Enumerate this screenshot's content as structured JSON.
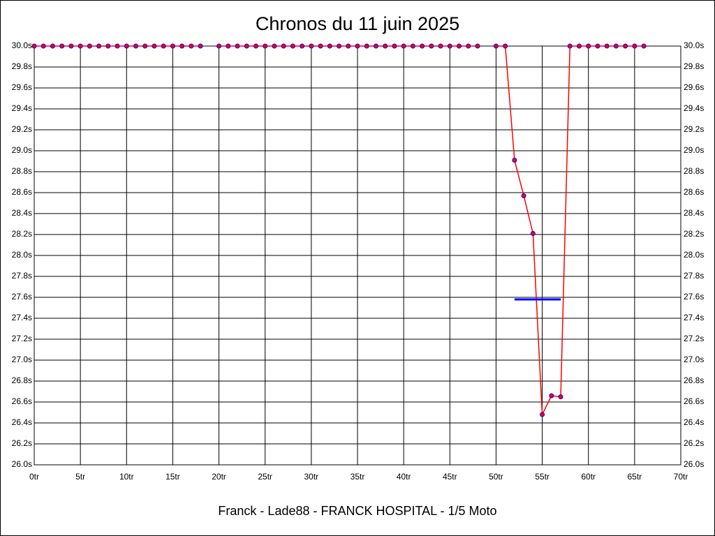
{
  "chart_data": {
    "type": "line",
    "title": "Chronos du 11 juin 2025",
    "subtitle": "Franck - Lade88 - FRANCK HOSPITAL - 1/5 Moto",
    "x": [
      0,
      1,
      2,
      3,
      4,
      5,
      6,
      7,
      8,
      9,
      10,
      11,
      12,
      13,
      14,
      15,
      16,
      17,
      18,
      19,
      20,
      21,
      22,
      23,
      24,
      25,
      26,
      27,
      28,
      29,
      30,
      31,
      32,
      33,
      34,
      35,
      36,
      37,
      38,
      39,
      40,
      41,
      42,
      43,
      44,
      45,
      46,
      47,
      48,
      49,
      50,
      51,
      52,
      53,
      54,
      55,
      56,
      57,
      58,
      59,
      60,
      61,
      62,
      63,
      64,
      65,
      66
    ],
    "series": [
      {
        "color": "#ff0000",
        "marker_edge": "#0000ff",
        "values": [
          30,
          30,
          30,
          30,
          30,
          30,
          30,
          30,
          30,
          30,
          30,
          30,
          30,
          30,
          30,
          30,
          30,
          30,
          30,
          null,
          30,
          30,
          30,
          30,
          30,
          30,
          30,
          30,
          30,
          30,
          30,
          30,
          30,
          30,
          30,
          30,
          30,
          30,
          30,
          30,
          30,
          30,
          30,
          30,
          30,
          30,
          30,
          30,
          30,
          null,
          30,
          30,
          28.91,
          28.57,
          28.21,
          26.48,
          26.66,
          26.65,
          30,
          30,
          30,
          30,
          30,
          30,
          30,
          30,
          30
        ]
      }
    ],
    "average": {
      "value": 27.58,
      "x": [
        52,
        57
      ],
      "color": "#0000ff"
    },
    "xlim": [
      0,
      70
    ],
    "xticks": [
      {
        "value": 0,
        "label": "0tr"
      },
      {
        "value": 5,
        "label": "5tr"
      },
      {
        "value": 10,
        "label": "10tr"
      },
      {
        "value": 15,
        "label": "15tr"
      },
      {
        "value": 20,
        "label": "20tr"
      },
      {
        "value": 25,
        "label": "25tr"
      },
      {
        "value": 30,
        "label": "30tr"
      },
      {
        "value": 35,
        "label": "35tr"
      },
      {
        "value": 40,
        "label": "40tr"
      },
      {
        "value": 45,
        "label": "45tr"
      },
      {
        "value": 50,
        "label": "50tr"
      },
      {
        "value": 55,
        "label": "55tr"
      },
      {
        "value": 60,
        "label": "60tr"
      },
      {
        "value": 65,
        "label": "65tr"
      },
      {
        "value": 70,
        "label": "70tr"
      }
    ],
    "ylim": [
      26,
      30
    ],
    "yticks": [
      {
        "value": 26,
        "label": "26.0s"
      },
      {
        "value": 26.2,
        "label": "26.2s"
      },
      {
        "value": 26.4,
        "label": "26.4s"
      },
      {
        "value": 26.6,
        "label": "26.6s"
      },
      {
        "value": 26.8,
        "label": "26.8s"
      },
      {
        "value": 27,
        "label": "27.0s"
      },
      {
        "value": 27.2,
        "label": "27.2s"
      },
      {
        "value": 27.4,
        "label": "27.4s"
      },
      {
        "value": 27.6,
        "label": "27.6s"
      },
      {
        "value": 27.8,
        "label": "27.8s"
      },
      {
        "value": 28,
        "label": "28.0s"
      },
      {
        "value": 28.2,
        "label": "28.2s"
      },
      {
        "value": 28.4,
        "label": "28.4s"
      },
      {
        "value": 28.6,
        "label": "28.6s"
      },
      {
        "value": 28.8,
        "label": "28.8s"
      },
      {
        "value": 29,
        "label": "29.0s"
      },
      {
        "value": 29.2,
        "label": "29.2s"
      },
      {
        "value": 29.4,
        "label": "29.4s"
      },
      {
        "value": 29.6,
        "label": "29.6s"
      },
      {
        "value": 29.8,
        "label": "29.8s"
      },
      {
        "value": 30,
        "label": "30.0s"
      }
    ],
    "grid": true
  }
}
